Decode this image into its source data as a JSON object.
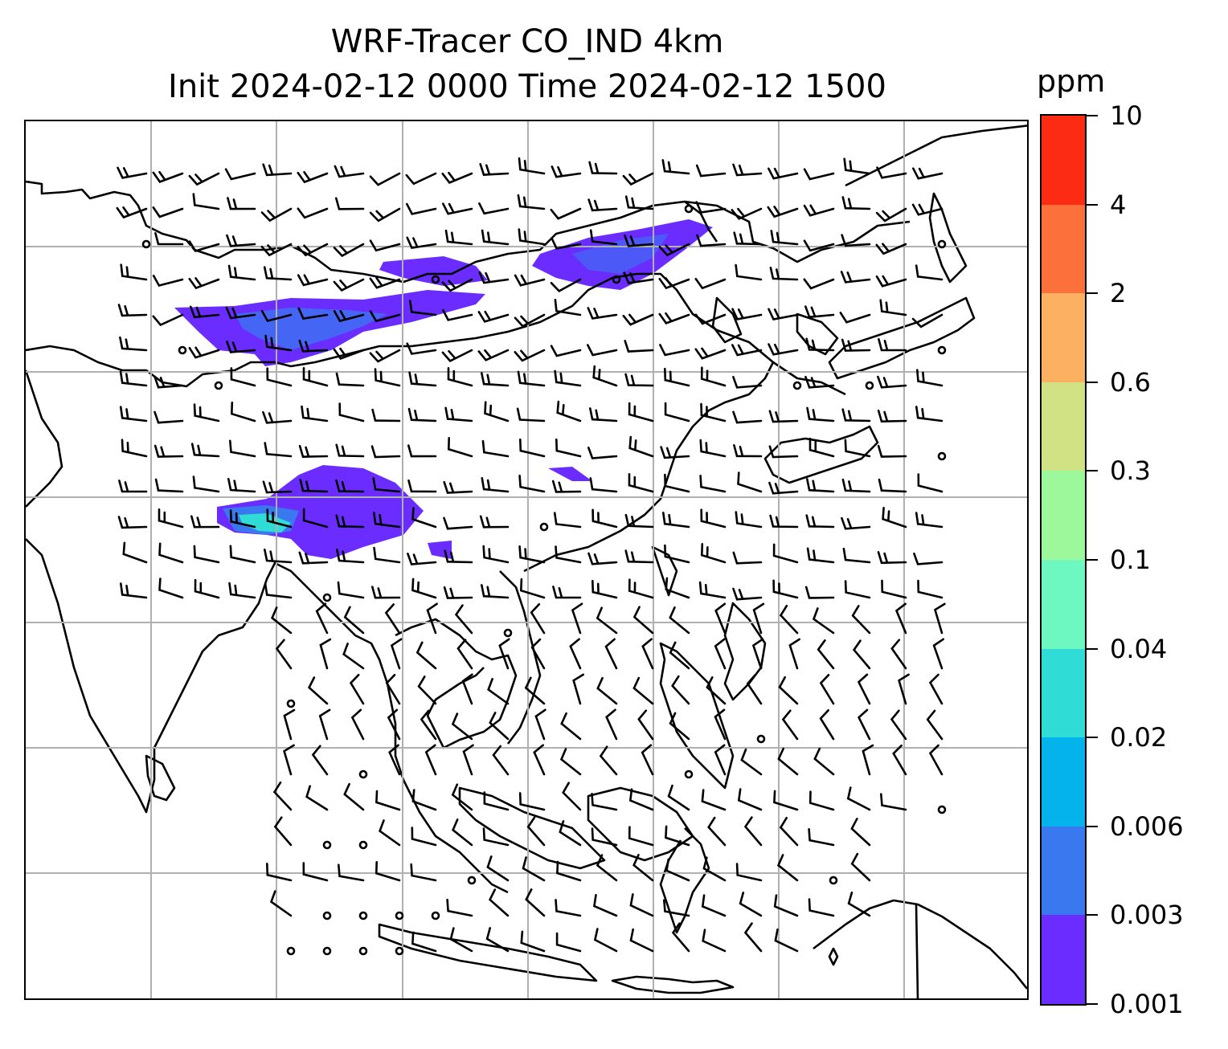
{
  "title": {
    "line1": "WRF-Tracer CO_IND 4km",
    "line2": "Init 2024-02-12 0000 Time 2024-02-12 1500"
  },
  "colorbar": {
    "unit": "ppm",
    "levels": [
      "0.001",
      "0.003",
      "0.006",
      "0.02",
      "0.04",
      "0.1",
      "0.3",
      "0.6",
      "2",
      "4",
      "10"
    ],
    "colors": [
      "#6a2cff",
      "#3a78f0",
      "#04b2ec",
      "#30dcd6",
      "#6cf8c0",
      "#9cf89a",
      "#d0e284",
      "#fcb062",
      "#fc703c",
      "#fc2c14"
    ]
  },
  "map": {
    "gridlines": true,
    "coastlines": true,
    "wind_barbs": true,
    "tracer_colors": {
      "low": "#6a2cff",
      "mid": "#3a78f0",
      "high": "#30dcd6"
    }
  }
}
